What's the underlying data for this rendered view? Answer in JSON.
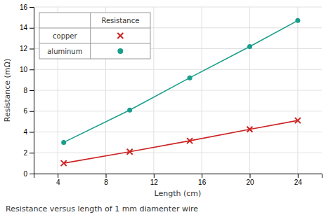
{
  "chart_data": {
    "type": "line",
    "title": "Resistance versus length of 1 mm diamenter wire",
    "x_label": "Length (cm)",
    "y_label": "Resistance (mΩ)",
    "legend_title": "Resistance",
    "series": [
      {
        "name": "copper",
        "color": "#cc2222",
        "marker": "x",
        "x": [
          4.5,
          10,
          15,
          20,
          24
        ],
        "values": [
          1.0,
          2.1,
          3.15,
          4.25,
          5.1
        ]
      },
      {
        "name": "aluminum",
        "color": "#1a9e8c",
        "marker": "o",
        "x": [
          4.5,
          10,
          15,
          20,
          24
        ],
        "values": [
          3.0,
          6.1,
          9.2,
          12.2,
          14.7
        ]
      }
    ],
    "xlim": [
      2,
      26
    ],
    "ylim": [
      0,
      16
    ],
    "xticks": [
      4,
      8,
      12,
      16,
      20,
      24
    ],
    "yticks": [
      0,
      2,
      4,
      6,
      8,
      10,
      12,
      14,
      16
    ],
    "grid": true,
    "legend": "upper left"
  }
}
